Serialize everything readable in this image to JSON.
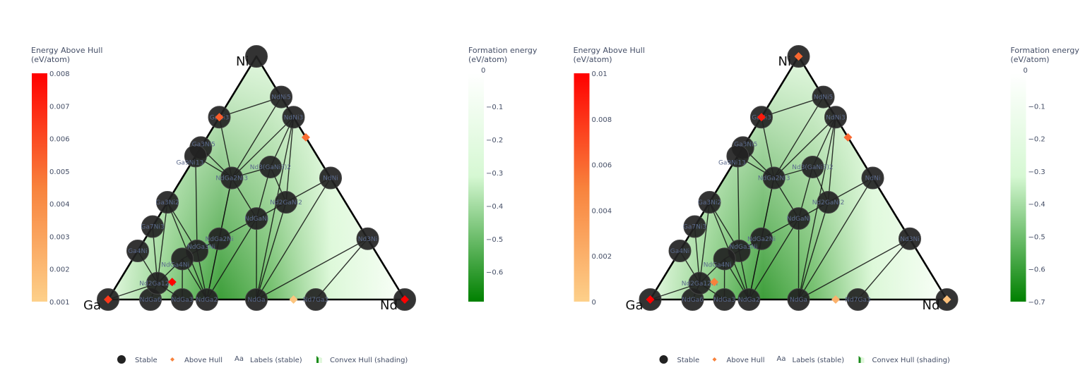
{
  "chart_data": [
    {
      "type": "scatter",
      "subtype": "ternary-phase-diagram",
      "elements": [
        "Ga",
        "Ni",
        "Nd"
      ],
      "ehull_colorbar": {
        "title": [
          "Energy Above Hull",
          "(eV/atom)"
        ],
        "range": [
          0.001,
          0.008
        ],
        "ticks": [
          "0.008",
          "0.007",
          "0.006",
          "0.005",
          "0.004",
          "0.003",
          "0.002",
          "0.001"
        ],
        "low_color": "#fdd08a",
        "mid_color": "#f8823c",
        "high_color": "#ff0000"
      },
      "formation_colorbar": {
        "title": [
          "Formation energy",
          "(eV/atom)"
        ],
        "range": [
          0,
          -0.69
        ],
        "ticks": [
          "0",
          "−0.1",
          "−0.2",
          "−0.3",
          "−0.4",
          "−0.5",
          "−0.6"
        ],
        "tick_values": [
          0,
          -0.1,
          -0.2,
          -0.3,
          -0.4,
          -0.5,
          -0.6
        ],
        "top_color": "#ffffff",
        "bottom_color": "#008000"
      },
      "above_hull": [
        {
          "comp": [
            1,
            0,
            0
          ],
          "e": 0.0065
        },
        {
          "comp": [
            0,
            0,
            1
          ],
          "e": 0.008
        },
        {
          "comp": [
            0.25,
            0.75,
            0
          ],
          "e": 0.0055
        },
        {
          "comp": [
            0,
            0.667,
            0.333
          ],
          "e": 0.005
        },
        {
          "comp": [
            0.748,
            0.072,
            0.18
          ],
          "e": 0.008
        },
        {
          "comp": [
            0.375,
            0,
            0.625
          ],
          "e": 0.0015
        }
      ]
    },
    {
      "type": "scatter",
      "subtype": "ternary-phase-diagram",
      "elements": [
        "Ga",
        "Ni",
        "Nd"
      ],
      "ehull_colorbar": {
        "title": [
          "Energy Above Hull",
          "(eV/atom)"
        ],
        "range": [
          0,
          0.01
        ],
        "ticks": [
          "0.01",
          "0.008",
          "0.006",
          "0.004",
          "0.002",
          "0"
        ],
        "low_color": "#fdd08a",
        "mid_color": "#f8823c",
        "high_color": "#ff0000"
      },
      "formation_colorbar": {
        "title": [
          "Formation energy",
          "(eV/atom)"
        ],
        "range": [
          0,
          -0.7
        ],
        "ticks": [
          "0",
          "−0.1",
          "−0.2",
          "−0.3",
          "−0.4",
          "−0.5",
          "−0.6",
          "−0.7"
        ],
        "tick_values": [
          0,
          -0.1,
          -0.2,
          -0.3,
          -0.4,
          -0.5,
          -0.6,
          -0.7
        ],
        "top_color": "#ffffff",
        "bottom_color": "#008000"
      },
      "above_hull": [
        {
          "comp": [
            1,
            0,
            0
          ],
          "e": 0.01
        },
        {
          "comp": [
            0,
            1,
            0
          ],
          "e": 0.006
        },
        {
          "comp": [
            0,
            0,
            1
          ],
          "e": 0.001
        },
        {
          "comp": [
            0.25,
            0.75,
            0
          ],
          "e": 0.009
        },
        {
          "comp": [
            0,
            0.667,
            0.333
          ],
          "e": 0.006
        },
        {
          "comp": [
            0.748,
            0.072,
            0.18
          ],
          "e": 0.005
        },
        {
          "comp": [
            0.375,
            0,
            0.625
          ],
          "e": 0.002
        }
      ]
    }
  ],
  "stable_phases": [
    {
      "label": "Ga",
      "comp": [
        1,
        0,
        0
      ],
      "show_label": false
    },
    {
      "label": "Ni",
      "comp": [
        0,
        1,
        0
      ],
      "show_label": false
    },
    {
      "label": "Nd",
      "comp": [
        0,
        0,
        1
      ],
      "show_label": false
    },
    {
      "label": "NdNi5",
      "comp": [
        0,
        0.833,
        0.167
      ]
    },
    {
      "label": "GaNi3",
      "comp": [
        0.25,
        0.75,
        0
      ]
    },
    {
      "label": "NdNi3",
      "comp": [
        0,
        0.75,
        0.25
      ]
    },
    {
      "label": "Ga3Ni5",
      "comp": [
        0.375,
        0.625,
        0
      ]
    },
    {
      "label": "Ga9Ni13",
      "comp": [
        0.41,
        0.59,
        0
      ]
    },
    {
      "label": "Ga3Ni2",
      "comp": [
        0.6,
        0.4,
        0
      ]
    },
    {
      "label": "Ga7Ni3",
      "comp": [
        0.7,
        0.3,
        0
      ]
    },
    {
      "label": "Ga4Ni",
      "comp": [
        0.8,
        0.2,
        0
      ]
    },
    {
      "label": "NdGa6",
      "comp": [
        0.857,
        0,
        0.143
      ]
    },
    {
      "label": "NdGa3",
      "comp": [
        0.75,
        0,
        0.25
      ]
    },
    {
      "label": "NdGa2",
      "comp": [
        0.667,
        0,
        0.333
      ]
    },
    {
      "label": "NdGa",
      "comp": [
        0.5,
        0,
        0.5
      ]
    },
    {
      "label": "Nd7Ga3",
      "comp": [
        0.3,
        0,
        0.7
      ]
    },
    {
      "label": "Nd3Ni",
      "comp": [
        0,
        0.25,
        0.75
      ]
    },
    {
      "label": "NdNi",
      "comp": [
        0,
        0.5,
        0.5
      ]
    },
    {
      "label": "NdGa2Ni3",
      "comp": [
        0.333,
        0.5,
        0.167
      ]
    },
    {
      "label": "Nd3(GaNi3)2",
      "comp": [
        0.18,
        0.545,
        0.275
      ]
    },
    {
      "label": "Nd2GaNi2",
      "comp": [
        0.2,
        0.4,
        0.4
      ]
    },
    {
      "label": "NdGaNi",
      "comp": [
        0.333,
        0.333,
        0.334
      ]
    },
    {
      "label": "NdGa2Ni",
      "comp": [
        0.5,
        0.25,
        0.25
      ]
    },
    {
      "label": "NdGa3Ni",
      "comp": [
        0.6,
        0.2,
        0.2
      ]
    },
    {
      "label": "NdGa4Ni",
      "comp": [
        0.666,
        0.167,
        0.167
      ]
    },
    {
      "label": "Nd2Ga12Ni",
      "comp": [
        0.8,
        0.067,
        0.133
      ]
    }
  ],
  "tie_lines": [
    [
      "GaNi3",
      "NdNi5"
    ],
    [
      "NdNi5",
      "NdGa2Ni3"
    ],
    [
      "NdNi3",
      "NdGa2Ni3"
    ],
    [
      "NdNi3",
      "Nd3(GaNi3)2"
    ],
    [
      "NdNi3",
      "Nd2GaNi2"
    ],
    [
      "NdNi3",
      "NdGa"
    ],
    [
      "GaNi3",
      "NdGa2Ni3"
    ],
    [
      "Ga3Ni5",
      "NdGa2Ni3"
    ],
    [
      "Ga9Ni13",
      "NdGa2Ni3"
    ],
    [
      "Ga9Ni13",
      "NdGa3Ni"
    ],
    [
      "NdGa2Ni3",
      "Nd3(GaNi3)2"
    ],
    [
      "NdGa2Ni3",
      "NdGaNi"
    ],
    [
      "NdGa2Ni3",
      "NdGa2Ni"
    ],
    [
      "NdGa2Ni3",
      "NdGa2"
    ],
    [
      "Ga3Ni2",
      "NdGa3Ni"
    ],
    [
      "Ga3Ni2",
      "NdGa2"
    ],
    [
      "Ga3Ni2",
      "Nd2Ga12Ni"
    ],
    [
      "Ga7Ni3",
      "Nd2Ga12Ni"
    ],
    [
      "Ga4Ni",
      "Nd2Ga12Ni"
    ],
    [
      "Ga",
      "Nd2Ga12Ni"
    ],
    [
      "Nd2Ga12Ni",
      "NdGa6"
    ],
    [
      "Nd2Ga12Ni",
      "NdGa3"
    ],
    [
      "Nd2Ga12Ni",
      "NdGa4Ni"
    ],
    [
      "NdGa4Ni",
      "NdGa3"
    ],
    [
      "NdGa4Ni",
      "NdGa2"
    ],
    [
      "NdGa3Ni",
      "NdGa2"
    ],
    [
      "NdGa3Ni",
      "NdGa4Ni"
    ],
    [
      "NdGa3Ni",
      "NdGa2Ni"
    ],
    [
      "NdGa2Ni",
      "NdGaNi"
    ],
    [
      "NdGa2Ni",
      "NdGa2"
    ],
    [
      "NdGaNi",
      "NdGa2"
    ],
    [
      "NdGaNi",
      "NdGa"
    ],
    [
      "NdGaNi",
      "Nd2GaNi2"
    ],
    [
      "Nd2GaNi2",
      "NdNi"
    ],
    [
      "Nd3(GaNi3)2",
      "NdGaNi"
    ],
    [
      "Nd3(GaNi3)2",
      "Nd2GaNi2"
    ],
    [
      "Nd2GaNi2",
      "NdGa"
    ],
    [
      "NdNi",
      "NdGa"
    ],
    [
      "Nd3Ni",
      "NdGa"
    ],
    [
      "Nd3Ni",
      "Nd7Ga3"
    ]
  ],
  "legend": {
    "stable": "Stable",
    "above_hull": "Above Hull",
    "labels_icon": "Aa",
    "labels": "Labels (stable)",
    "hull": "Convex Hull (shading)"
  }
}
